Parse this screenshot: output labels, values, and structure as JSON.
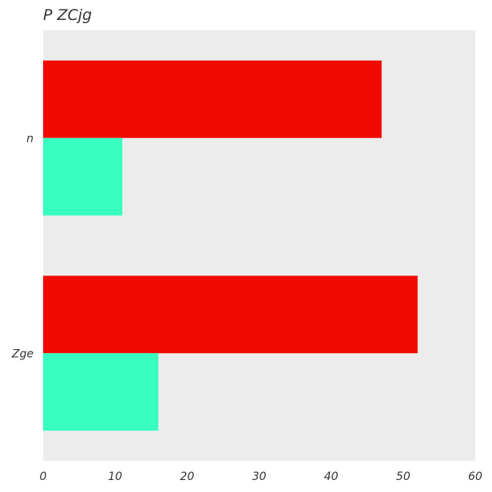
{
  "chart_data": {
    "type": "bar",
    "orientation": "horizontal",
    "title": "P ZCjg",
    "xlabel": "",
    "ylabel": "",
    "categories": [
      "n",
      "Zge"
    ],
    "series": [
      {
        "values": [
          47,
          52
        ],
        "color": "#f20a00"
      },
      {
        "values": [
          11,
          16
        ],
        "color": "#38ffc0"
      }
    ],
    "xlim": [
      0,
      60
    ],
    "xticks": [
      "0",
      "10",
      "20",
      "30",
      "40",
      "50",
      "60"
    ],
    "grid": false,
    "plot_background": "#ececec",
    "legend": "none"
  }
}
